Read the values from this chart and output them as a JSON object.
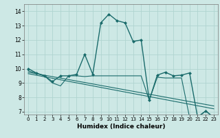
{
  "xlabel": "Humidex (Indice chaleur)",
  "xlim": [
    -0.5,
    23.5
  ],
  "ylim": [
    6.8,
    14.5
  ],
  "yticks": [
    7,
    8,
    9,
    10,
    11,
    12,
    13,
    14
  ],
  "xticks": [
    0,
    1,
    2,
    3,
    4,
    5,
    6,
    7,
    8,
    9,
    10,
    11,
    12,
    13,
    14,
    15,
    16,
    17,
    18,
    19,
    20,
    21,
    22,
    23
  ],
  "bg_color": "#cde8e5",
  "grid_color": "#b0d4d0",
  "line_color": "#1a6b6b",
  "series": [
    {
      "x": [
        0,
        1,
        2,
        3,
        4,
        5,
        6,
        7,
        8,
        9,
        10,
        11,
        12,
        13,
        14,
        15,
        16,
        17,
        18,
        19,
        20,
        21,
        22,
        23
      ],
      "y": [
        10.0,
        9.7,
        9.5,
        9.1,
        9.5,
        9.5,
        9.6,
        11.0,
        9.6,
        13.2,
        13.8,
        13.35,
        13.2,
        11.9,
        12.0,
        7.8,
        9.55,
        9.75,
        9.5,
        9.55,
        9.7,
        6.6,
        7.05,
        6.6
      ],
      "has_markers": true,
      "linewidth": 1.0
    },
    {
      "x": [
        0,
        2,
        3,
        4,
        5,
        6,
        7,
        8,
        9,
        10,
        11,
        12,
        13,
        14,
        15,
        16,
        17,
        18,
        19,
        20,
        21,
        22,
        23
      ],
      "y": [
        9.85,
        9.5,
        9.0,
        8.8,
        9.5,
        9.5,
        9.45,
        9.5,
        9.5,
        9.5,
        9.5,
        9.5,
        9.5,
        9.5,
        7.8,
        9.4,
        9.35,
        9.35,
        9.35,
        6.6,
        6.65,
        7.05,
        6.6
      ],
      "has_markers": false,
      "linewidth": 0.8
    },
    {
      "x": [
        0,
        23
      ],
      "y": [
        9.75,
        7.4
      ],
      "has_markers": false,
      "linewidth": 0.8
    },
    {
      "x": [
        0,
        23
      ],
      "y": [
        9.65,
        7.2
      ],
      "has_markers": false,
      "linewidth": 0.8
    }
  ]
}
